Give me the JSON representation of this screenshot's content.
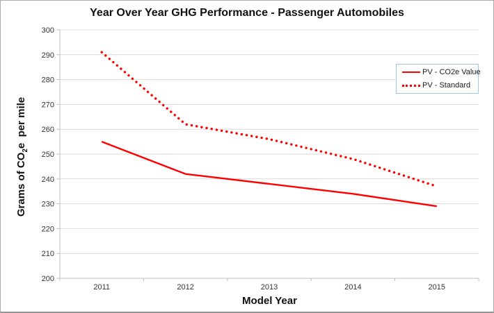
{
  "title": "Year Over Year GHG Performance - Passenger Automobiles",
  "axes": {
    "y_title_prefix": "Grams of CO",
    "y_title_sub": "2",
    "y_title_suffix": "e  per mile",
    "x_title": "Model Year"
  },
  "legend": {
    "entries": [
      {
        "label": "PV - CO2e Value",
        "style": "solid"
      },
      {
        "label": "PV - Standard",
        "style": "dotted"
      }
    ]
  },
  "colors": {
    "series_red": "#ff0000",
    "gridline": "#d9d9d9",
    "axis_line": "#bfbfbf",
    "tick_text": "#333333",
    "legend_border": "#9dc3e6"
  },
  "chart_data": {
    "type": "line",
    "title": "Year Over Year GHG Performance - Passenger Automobiles",
    "xlabel": "Model Year",
    "ylabel": "Grams of CO2e per mile",
    "categories": [
      "2011",
      "2012",
      "2013",
      "2014",
      "2015"
    ],
    "series": [
      {
        "name": "PV - CO2e Value",
        "style": "solid",
        "color": "#ff0000",
        "values": [
          255,
          242,
          238,
          234,
          229
        ]
      },
      {
        "name": "PV - Standard",
        "style": "dotted",
        "color": "#ff0000",
        "values": [
          291,
          262,
          256,
          248,
          237
        ]
      }
    ],
    "ylim": [
      200,
      300
    ],
    "ytick_step": 10,
    "yticks": [
      200,
      210,
      220,
      230,
      240,
      250,
      260,
      270,
      280,
      290,
      300
    ],
    "grid": true,
    "legend_position": "upper right"
  }
}
